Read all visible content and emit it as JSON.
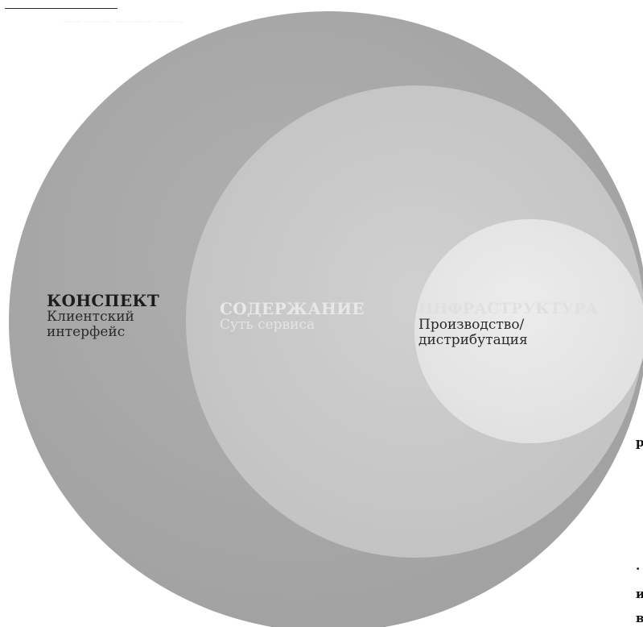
{
  "caption": "—— ——— ———— ———",
  "circles": {
    "outer": {
      "fill": "#a9a9a9",
      "title": "КОНСПЕКТ",
      "subtitle_lines": [
        "Клиентский",
        "интерфейс"
      ]
    },
    "middle": {
      "fill": "#c9c9c9",
      "title": "СОДЕРЖАНИЕ",
      "subtitle_lines": [
        "Суть сервиса"
      ]
    },
    "inner": {
      "fill": "#e6e6e6",
      "title": "ИНФРАСТРУКТУРА",
      "subtitle_lines": [
        "Производство/",
        "дистрибутация"
      ]
    }
  },
  "edge_glyphs": [
    "р",
    ".",
    "и",
    "в"
  ]
}
